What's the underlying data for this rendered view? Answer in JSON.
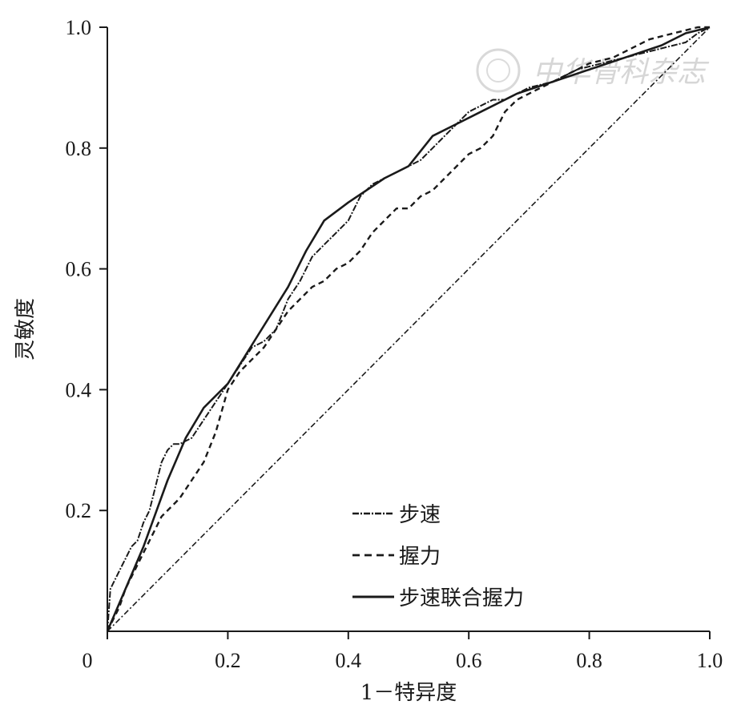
{
  "chart_data": {
    "type": "line",
    "title": "",
    "xlabel": "1－特异度",
    "ylabel": "灵敏度",
    "xlim": [
      0,
      1
    ],
    "ylim": [
      0,
      1
    ],
    "x_ticks": [
      "0",
      "0.2",
      "0.4",
      "0.6",
      "0.8",
      "1.0"
    ],
    "y_ticks": [
      "0.2",
      "0.4",
      "0.6",
      "0.8",
      "1.0"
    ],
    "grid": false,
    "legend_position": "bottom-center",
    "reference_line": {
      "x": [
        0,
        1
      ],
      "y": [
        0,
        1
      ]
    },
    "series": [
      {
        "name": "步速",
        "style": "dash-dot",
        "x": [
          0,
          0.005,
          0.01,
          0.02,
          0.03,
          0.04,
          0.05,
          0.06,
          0.07,
          0.08,
          0.09,
          0.1,
          0.11,
          0.12,
          0.14,
          0.16,
          0.18,
          0.2,
          0.22,
          0.24,
          0.26,
          0.28,
          0.3,
          0.32,
          0.34,
          0.36,
          0.38,
          0.4,
          0.42,
          0.44,
          0.46,
          0.48,
          0.5,
          0.52,
          0.54,
          0.56,
          0.58,
          0.6,
          0.62,
          0.64,
          0.66,
          0.68,
          0.7,
          0.72,
          0.74,
          0.76,
          0.78,
          0.8,
          0.82,
          0.84,
          0.86,
          0.88,
          0.9,
          0.92,
          0.94,
          0.96,
          0.98,
          1.0
        ],
        "y": [
          0,
          0.07,
          0.08,
          0.1,
          0.12,
          0.14,
          0.15,
          0.18,
          0.2,
          0.24,
          0.28,
          0.3,
          0.31,
          0.31,
          0.32,
          0.35,
          0.38,
          0.41,
          0.44,
          0.47,
          0.48,
          0.5,
          0.55,
          0.58,
          0.62,
          0.64,
          0.66,
          0.68,
          0.72,
          0.74,
          0.75,
          0.76,
          0.77,
          0.78,
          0.8,
          0.82,
          0.84,
          0.86,
          0.87,
          0.88,
          0.88,
          0.89,
          0.9,
          0.905,
          0.91,
          0.92,
          0.93,
          0.935,
          0.94,
          0.945,
          0.95,
          0.955,
          0.96,
          0.965,
          0.97,
          0.975,
          0.99,
          1.0
        ]
      },
      {
        "name": "握力",
        "style": "dashed",
        "x": [
          0,
          0.01,
          0.02,
          0.03,
          0.04,
          0.05,
          0.06,
          0.07,
          0.08,
          0.09,
          0.1,
          0.12,
          0.14,
          0.16,
          0.18,
          0.2,
          0.22,
          0.24,
          0.26,
          0.28,
          0.3,
          0.32,
          0.34,
          0.36,
          0.38,
          0.4,
          0.42,
          0.44,
          0.46,
          0.48,
          0.5,
          0.52,
          0.54,
          0.56,
          0.58,
          0.6,
          0.62,
          0.64,
          0.66,
          0.68,
          0.7,
          0.72,
          0.74,
          0.76,
          0.78,
          0.8,
          0.82,
          0.84,
          0.86,
          0.88,
          0.9,
          0.92,
          0.94,
          0.96,
          0.98,
          1.0
        ],
        "y": [
          0,
          0.02,
          0.04,
          0.07,
          0.09,
          0.11,
          0.13,
          0.15,
          0.17,
          0.19,
          0.2,
          0.22,
          0.25,
          0.28,
          0.33,
          0.4,
          0.43,
          0.45,
          0.47,
          0.5,
          0.53,
          0.55,
          0.57,
          0.58,
          0.6,
          0.61,
          0.63,
          0.66,
          0.68,
          0.7,
          0.7,
          0.72,
          0.73,
          0.75,
          0.77,
          0.79,
          0.8,
          0.82,
          0.86,
          0.88,
          0.89,
          0.9,
          0.91,
          0.92,
          0.93,
          0.94,
          0.945,
          0.95,
          0.96,
          0.97,
          0.98,
          0.985,
          0.99,
          0.995,
          1.0,
          1.0
        ]
      },
      {
        "name": "步速联合握力",
        "style": "solid",
        "x": [
          0,
          0.03,
          0.06,
          0.1,
          0.13,
          0.16,
          0.2,
          0.25,
          0.3,
          0.33,
          0.36,
          0.4,
          0.46,
          0.5,
          0.54,
          0.58,
          0.62,
          0.68,
          0.74,
          0.8,
          0.86,
          0.92,
          0.96,
          1.0
        ],
        "y": [
          0,
          0.07,
          0.14,
          0.25,
          0.32,
          0.37,
          0.41,
          0.49,
          0.57,
          0.63,
          0.68,
          0.71,
          0.75,
          0.77,
          0.82,
          0.84,
          0.86,
          0.89,
          0.91,
          0.93,
          0.95,
          0.97,
          0.99,
          1.0
        ]
      }
    ]
  },
  "watermark": {
    "text": "中华骨科杂志"
  }
}
